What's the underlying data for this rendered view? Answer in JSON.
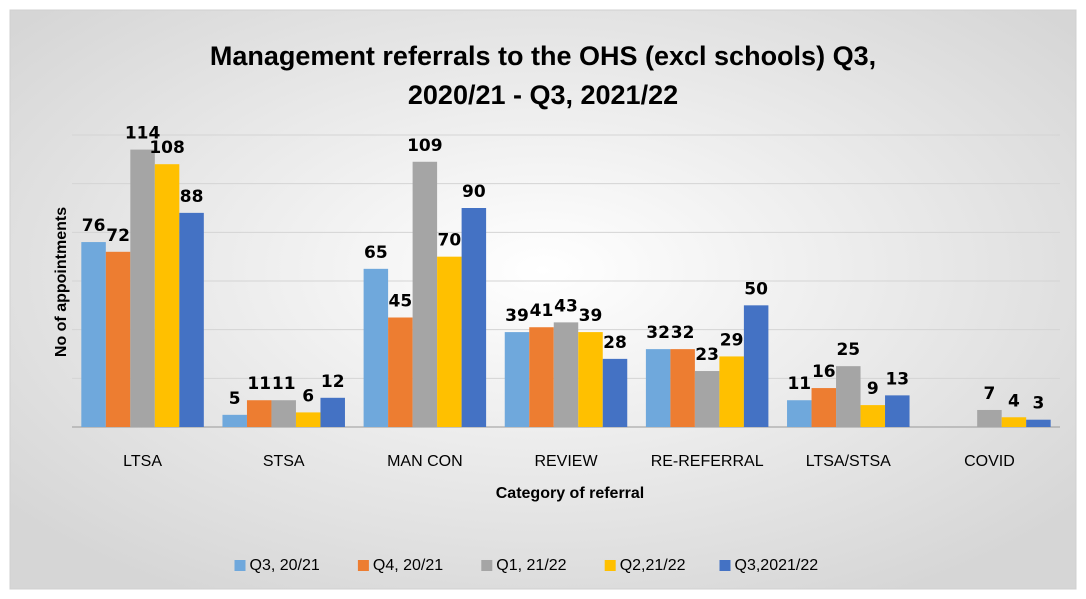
{
  "chart_data": {
    "type": "bar",
    "title": [
      "Management referrals to the OHS (excl schools) Q3,",
      "2020/21 - Q3, 2021/22"
    ],
    "x_label": "Category of referral",
    "y_label": "No of appointments",
    "categories": [
      "LTSA",
      "STSA",
      "MAN CON",
      "REVIEW",
      "RE-REFERRAL",
      "LTSA/STSA",
      "COVID"
    ],
    "series": [
      {
        "name": "Q3, 20/21",
        "color": "#6fa8dc",
        "values": [
          76,
          5,
          65,
          39,
          32,
          11,
          null
        ]
      },
      {
        "name": "Q4, 20/21",
        "color": "#ed7d31",
        "values": [
          72,
          11,
          45,
          41,
          32,
          16,
          null
        ]
      },
      {
        "name": "Q1, 21/22",
        "color": "#a5a5a5",
        "values": [
          114,
          11,
          109,
          43,
          23,
          25,
          7
        ]
      },
      {
        "name": "Q2,21/22",
        "color": "#ffc000",
        "values": [
          108,
          6,
          70,
          39,
          29,
          9,
          4
        ]
      },
      {
        "name": "Q3,2021/22",
        "color": "#4472c4",
        "values": [
          88,
          12,
          90,
          28,
          50,
          13,
          3
        ]
      }
    ],
    "ylim": [
      0,
      120
    ],
    "yticks": [
      0,
      20,
      40,
      60,
      80,
      100,
      120
    ],
    "grid": true,
    "legend": "bottom"
  }
}
